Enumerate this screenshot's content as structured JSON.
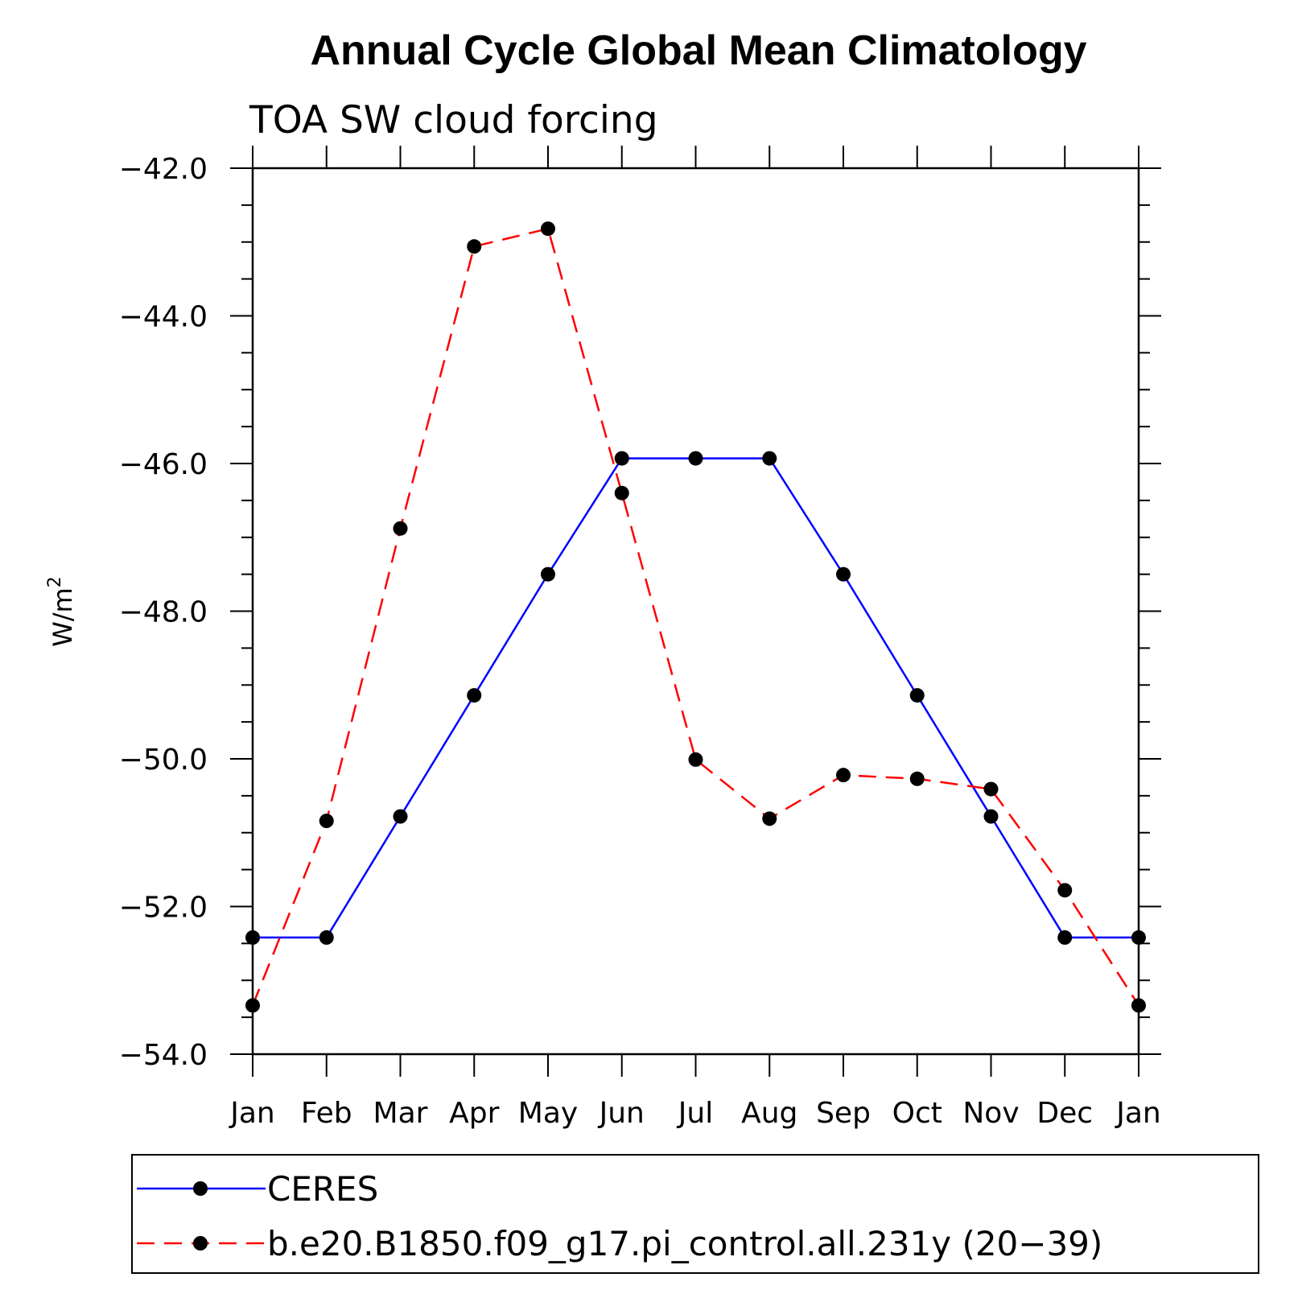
{
  "chart_data": {
    "type": "line",
    "title": "Annual Cycle Global Mean Climatology",
    "subtitle": "TOA SW cloud forcing",
    "ylabel": "W/m",
    "ylabel_superscript": "2",
    "ylim": [
      -54.0,
      -42.0
    ],
    "yticks": [
      "-42.0",
      "-44.0",
      "-46.0",
      "-48.0",
      "-50.0",
      "-52.0",
      "-54.0"
    ],
    "categories": [
      "Jan",
      "Feb",
      "Mar",
      "Apr",
      "May",
      "Jun",
      "Jul",
      "Aug",
      "Sep",
      "Oct",
      "Nov",
      "Dec",
      "Jan"
    ],
    "series": [
      {
        "name": "CERES",
        "color": "#0000ff",
        "dash": "solid",
        "values": [
          -52.42,
          -52.42,
          -50.78,
          -49.14,
          -47.5,
          -45.93,
          -45.93,
          -45.93,
          -47.5,
          -49.14,
          -50.78,
          -52.42,
          -52.42
        ]
      },
      {
        "name": "b.e20.B1850.f09_g17.pi_control.all.231y (20−39)",
        "color": "#ff0000",
        "dash": "dashed",
        "values": [
          -53.34,
          -50.84,
          -46.88,
          -43.06,
          -42.82,
          -46.4,
          -50.01,
          -50.81,
          -50.22,
          -50.27,
          -50.41,
          -51.78,
          -53.34
        ]
      }
    ],
    "legend_placement": "bottom"
  }
}
